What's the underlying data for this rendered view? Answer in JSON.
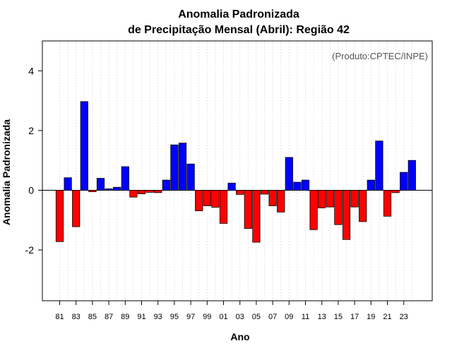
{
  "chart_data": {
    "type": "bar",
    "title_line1": "Anomalia Padronizada",
    "title_line2": "de Precipitação Mensal (Abril): Região 42",
    "xlabel": "Ano",
    "ylabel": "Anomalia Padronizada",
    "annotation": "(Produto:CPTEC/INPE)",
    "ylim": [
      -3.7,
      5.0
    ],
    "yticks": [
      -2,
      0,
      2,
      4
    ],
    "ytick_labels": [
      "-2",
      "0",
      "2",
      "4"
    ],
    "xtick_labels": [
      "81",
      "83",
      "85",
      "87",
      "89",
      "91",
      "93",
      "95",
      "97",
      "99",
      "01",
      "03",
      "05",
      "07",
      "09",
      "11",
      "13",
      "15",
      "17",
      "19",
      "21",
      "23"
    ],
    "categories": [
      "1981",
      "1982",
      "1983",
      "1984",
      "1985",
      "1986",
      "1987",
      "1988",
      "1989",
      "1990",
      "1991",
      "1992",
      "1993",
      "1994",
      "1995",
      "1996",
      "1997",
      "1998",
      "1999",
      "2000",
      "2001",
      "2002",
      "2003",
      "2004",
      "2005",
      "2006",
      "2007",
      "2008",
      "2009",
      "2010",
      "2011",
      "2012",
      "2013",
      "2014",
      "2015",
      "2016",
      "2017",
      "2018",
      "2019",
      "2020",
      "2021",
      "2022",
      "2023",
      "2024"
    ],
    "values": [
      -1.72,
      0.42,
      -1.22,
      2.97,
      -0.05,
      0.4,
      0.05,
      0.1,
      0.79,
      -0.23,
      -0.12,
      -0.07,
      -0.08,
      0.34,
      1.52,
      1.58,
      0.88,
      -0.69,
      -0.52,
      -0.57,
      -1.11,
      0.24,
      -0.14,
      -1.28,
      -1.74,
      -0.13,
      -0.52,
      -0.73,
      1.1,
      0.27,
      0.34,
      -1.32,
      -0.59,
      -0.56,
      -1.15,
      -1.65,
      -0.56,
      -1.05,
      0.34,
      1.65,
      -0.87,
      -0.08,
      0.6,
      1.0
    ],
    "positive_color": "#0000ff",
    "negative_color": "#ff0000",
    "grid": "vertical dotted"
  }
}
